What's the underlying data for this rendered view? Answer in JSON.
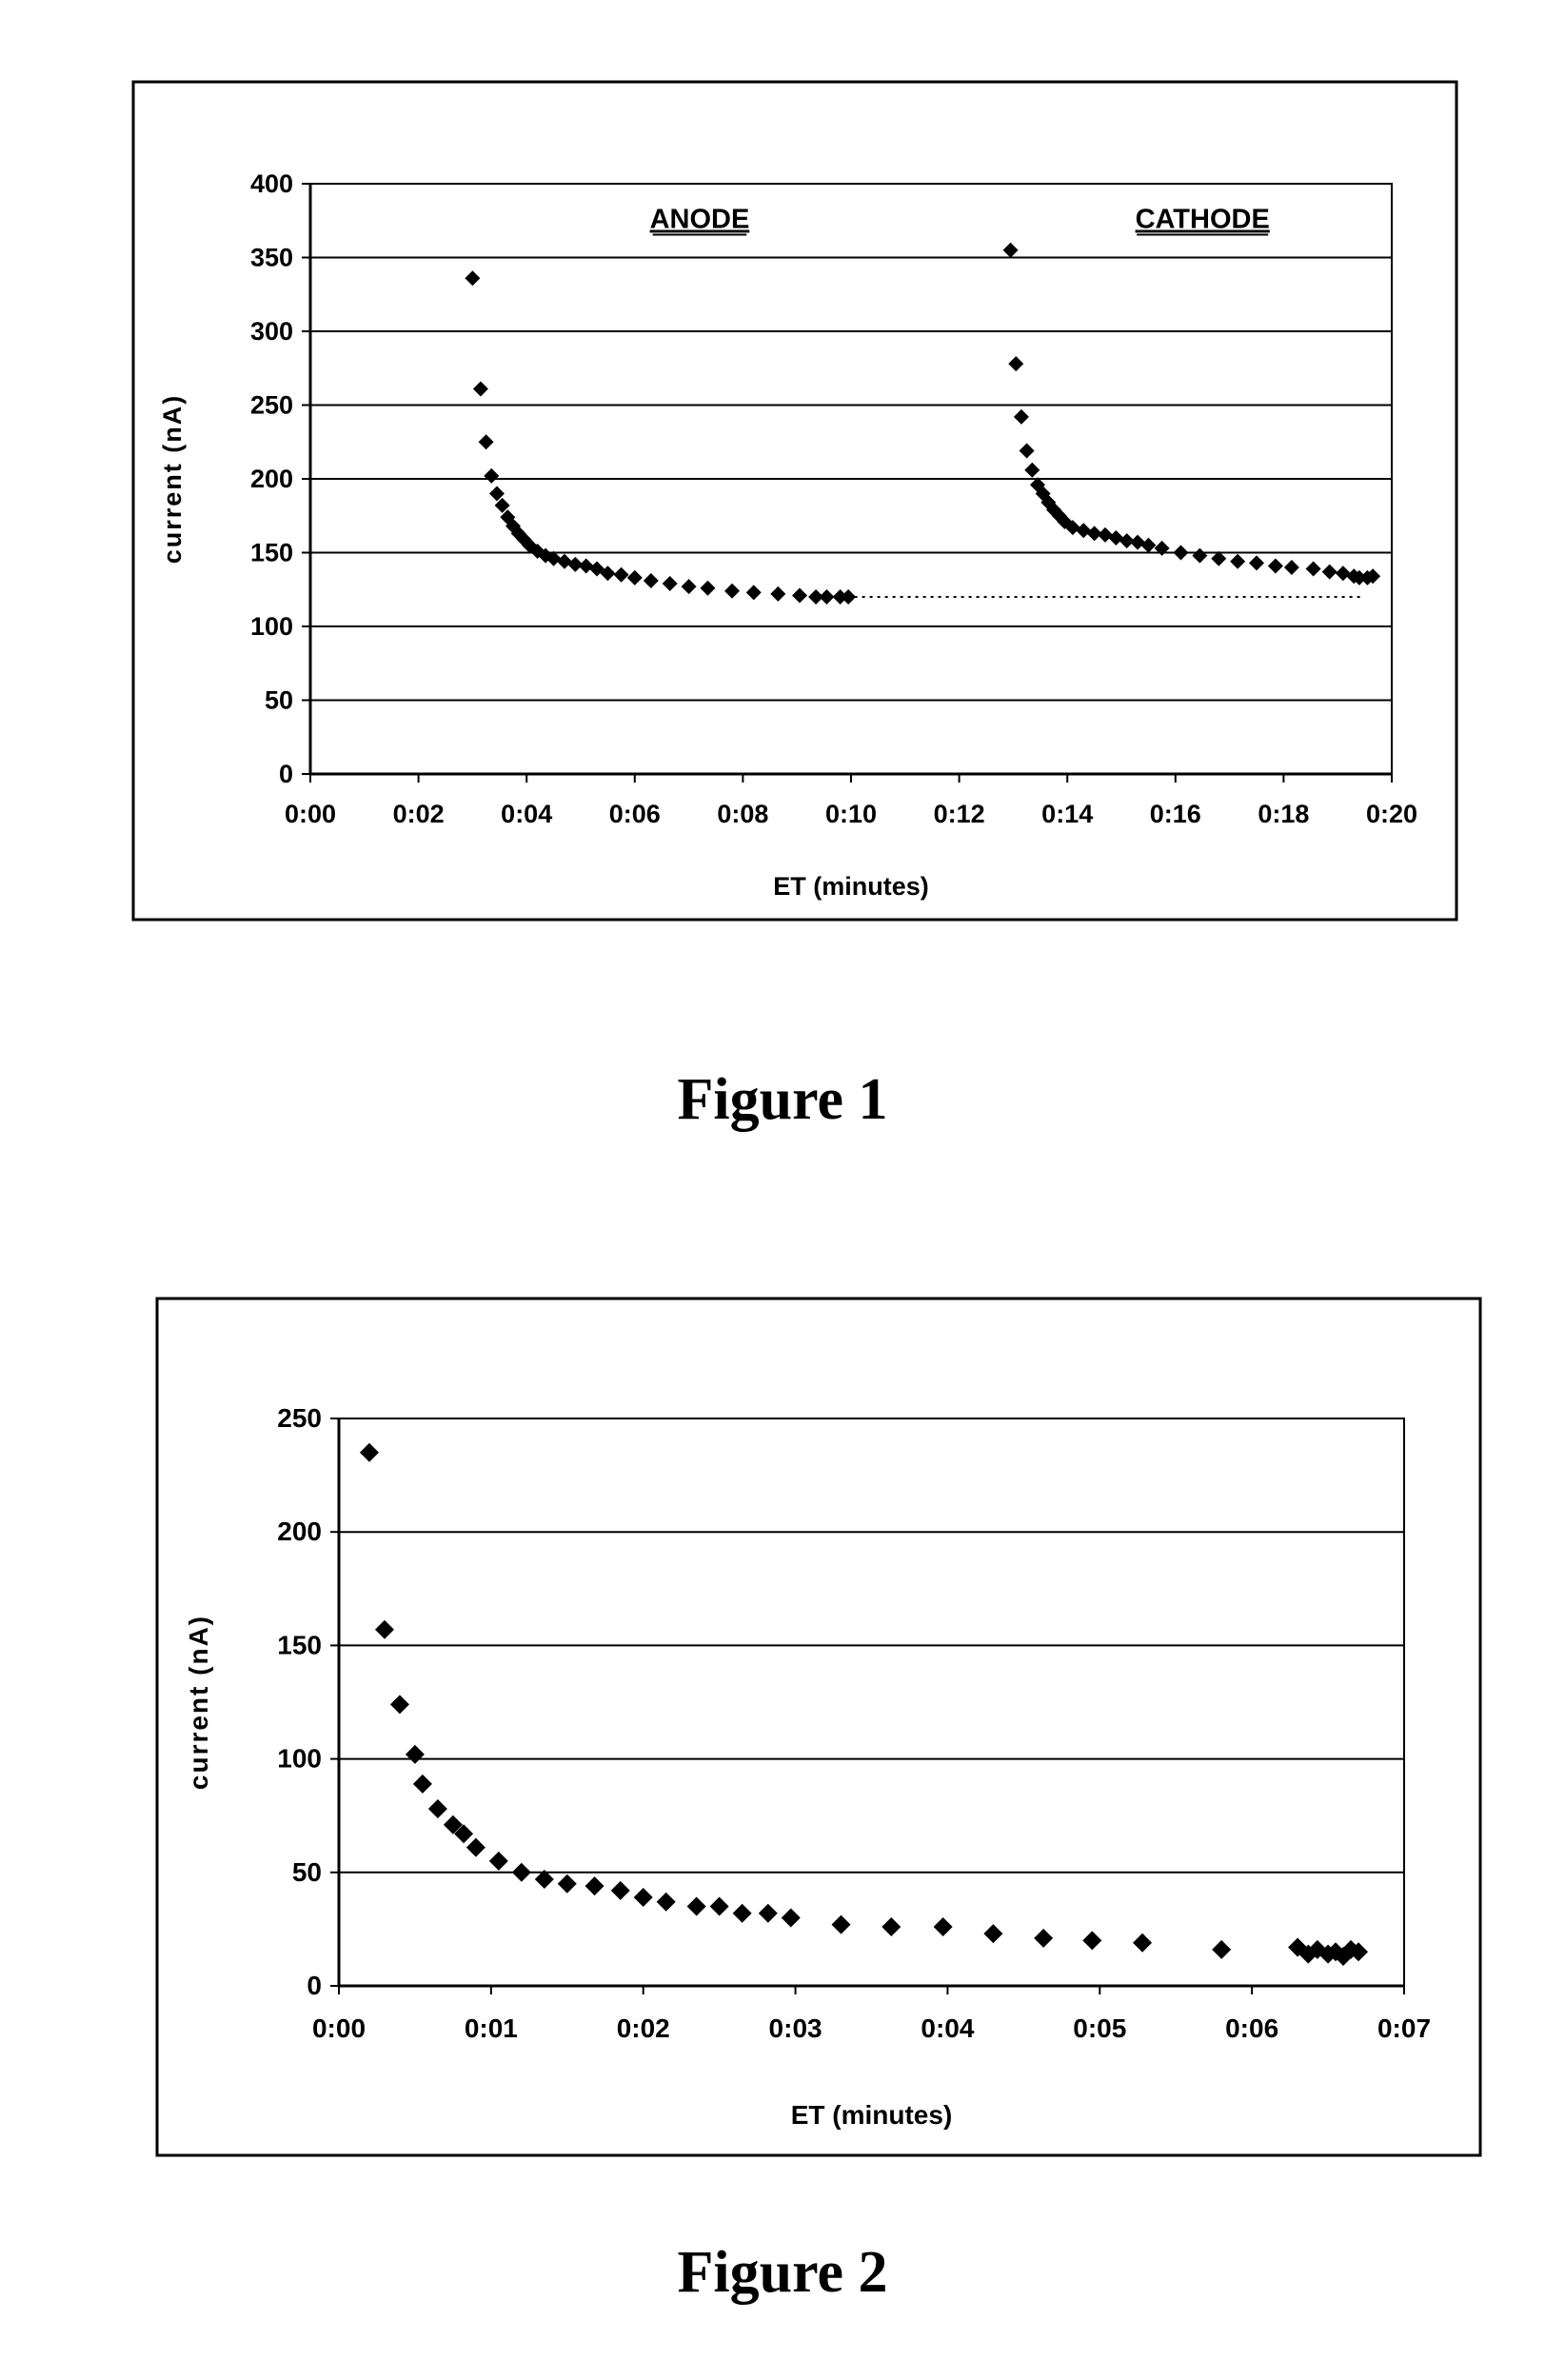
{
  "figures": [
    {
      "caption": "Figure 1"
    },
    {
      "caption": "Figure 2"
    }
  ],
  "chart_data": [
    {
      "type": "scatter",
      "title": "",
      "xlabel": "ET (minutes)",
      "ylabel": "current (nA)",
      "xlim": [
        0,
        20
      ],
      "ylim": [
        0,
        400
      ],
      "x_ticks": [
        0,
        2,
        4,
        6,
        8,
        10,
        12,
        14,
        16,
        18,
        20
      ],
      "x_tick_labels": [
        "0:00",
        "0:02",
        "0:04",
        "0:06",
        "0:08",
        "0:10",
        "0:12",
        "0:14",
        "0:16",
        "0:18",
        "0:20"
      ],
      "y_ticks": [
        0,
        50,
        100,
        150,
        200,
        250,
        300,
        350,
        400
      ],
      "y_tick_labels": [
        "0",
        "50",
        "100",
        "150",
        "200",
        "250",
        "300",
        "350",
        "400"
      ],
      "grid": true,
      "marker": "diamond",
      "annotations": [
        {
          "text": "ANODE",
          "x": 7.2,
          "y": 370,
          "underline": true
        },
        {
          "text": "CATHODE",
          "x": 16.5,
          "y": 370,
          "underline": true
        }
      ],
      "reference_line": {
        "style": "dotted",
        "x": [
          9.5,
          19.5
        ],
        "y": 120
      },
      "series": [
        {
          "values": [
            [
              3.0,
              336
            ],
            [
              3.15,
              261
            ],
            [
              3.25,
              225
            ],
            [
              3.35,
              202
            ],
            [
              3.45,
              190
            ],
            [
              3.55,
              182
            ],
            [
              3.65,
              174
            ],
            [
              3.75,
              168
            ],
            [
              3.85,
              163
            ],
            [
              3.95,
              159
            ],
            [
              4.05,
              155
            ],
            [
              4.2,
              151
            ],
            [
              4.35,
              148
            ],
            [
              4.5,
              146
            ],
            [
              4.7,
              144
            ],
            [
              4.9,
              142
            ],
            [
              5.1,
              141
            ],
            [
              5.3,
              139
            ],
            [
              5.5,
              136
            ],
            [
              5.75,
              135
            ],
            [
              6.0,
              133
            ],
            [
              6.3,
              131
            ],
            [
              6.65,
              129
            ],
            [
              7.0,
              127
            ],
            [
              7.35,
              126
            ],
            [
              7.8,
              124
            ],
            [
              8.2,
              123
            ],
            [
              8.65,
              122
            ],
            [
              9.05,
              121
            ],
            [
              9.35,
              120
            ],
            [
              9.55,
              120
            ],
            [
              9.8,
              120
            ],
            [
              9.95,
              120
            ]
          ]
        },
        {
          "values": [
            [
              12.95,
              355
            ],
            [
              13.05,
              278
            ],
            [
              13.15,
              242
            ],
            [
              13.25,
              219
            ],
            [
              13.35,
              206
            ],
            [
              13.45,
              196
            ],
            [
              13.55,
              190
            ],
            [
              13.65,
              184
            ],
            [
              13.75,
              179
            ],
            [
              13.85,
              175
            ],
            [
              13.95,
              171
            ],
            [
              14.1,
              167
            ],
            [
              14.3,
              165
            ],
            [
              14.5,
              163
            ],
            [
              14.7,
              162
            ],
            [
              14.9,
              160
            ],
            [
              15.1,
              158
            ],
            [
              15.3,
              157
            ],
            [
              15.5,
              155
            ],
            [
              15.75,
              153
            ],
            [
              16.1,
              150
            ],
            [
              16.45,
              148
            ],
            [
              16.8,
              146
            ],
            [
              17.15,
              144
            ],
            [
              17.5,
              143
            ],
            [
              17.85,
              141
            ],
            [
              18.15,
              140
            ],
            [
              18.55,
              139
            ],
            [
              18.85,
              137
            ],
            [
              19.1,
              136
            ],
            [
              19.3,
              134
            ],
            [
              19.4,
              133
            ],
            [
              19.55,
              133
            ],
            [
              19.65,
              134
            ]
          ]
        }
      ]
    },
    {
      "type": "scatter",
      "title": "",
      "xlabel": "ET (minutes)",
      "ylabel": "current (nA)",
      "xlim": [
        0,
        7
      ],
      "ylim": [
        0,
        250
      ],
      "x_ticks": [
        0,
        1,
        2,
        3,
        4,
        5,
        6,
        7
      ],
      "x_tick_labels": [
        "0:00",
        "0:01",
        "0:02",
        "0:03",
        "0:04",
        "0:05",
        "0:06",
        "0:07"
      ],
      "y_ticks": [
        0,
        50,
        100,
        150,
        200,
        250
      ],
      "y_tick_labels": [
        "0",
        "50",
        "100",
        "150",
        "200",
        "250"
      ],
      "grid": true,
      "marker": "diamond",
      "series": [
        {
          "values": [
            [
              0.2,
              235
            ],
            [
              0.3,
              157
            ],
            [
              0.4,
              124
            ],
            [
              0.5,
              102
            ],
            [
              0.55,
              89
            ],
            [
              0.65,
              78
            ],
            [
              0.75,
              71
            ],
            [
              0.82,
              67
            ],
            [
              0.9,
              61
            ],
            [
              1.05,
              55
            ],
            [
              1.2,
              50
            ],
            [
              1.35,
              47
            ],
            [
              1.5,
              45
            ],
            [
              1.68,
              44
            ],
            [
              1.85,
              42
            ],
            [
              2.0,
              39
            ],
            [
              2.15,
              37
            ],
            [
              2.35,
              35
            ],
            [
              2.5,
              35
            ],
            [
              2.65,
              32
            ],
            [
              2.82,
              32
            ],
            [
              2.97,
              30
            ],
            [
              3.3,
              27
            ],
            [
              3.63,
              26
            ],
            [
              3.97,
              26
            ],
            [
              4.3,
              23
            ],
            [
              4.63,
              21
            ],
            [
              4.95,
              20
            ],
            [
              5.28,
              19
            ],
            [
              5.8,
              16
            ],
            [
              6.3,
              17
            ],
            [
              6.37,
              14
            ],
            [
              6.43,
              16
            ],
            [
              6.5,
              14
            ],
            [
              6.55,
              15
            ],
            [
              6.6,
              13
            ],
            [
              6.65,
              16
            ],
            [
              6.7,
              15
            ]
          ]
        }
      ]
    }
  ]
}
